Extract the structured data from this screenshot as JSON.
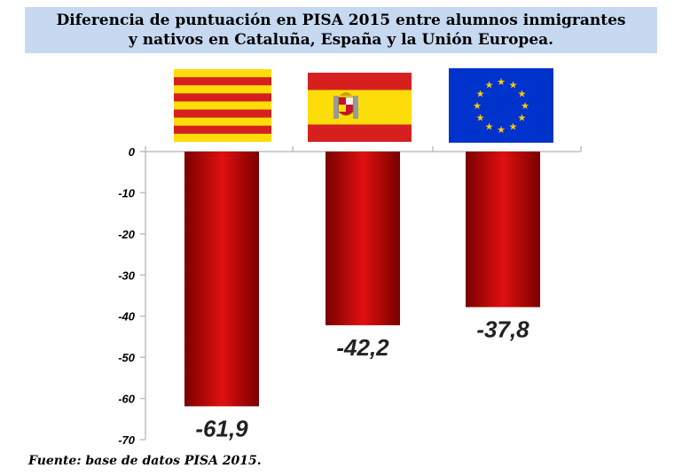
{
  "title": {
    "line1": "Diferencia de puntuación en PISA 2015 entre alumnos inmigrantes",
    "line2": "y nativos en Cataluña, España y la Unión Europea."
  },
  "source": "Fuente: base de datos PISA 2015.",
  "colors": {
    "title_bg": "#c6d9f1",
    "bar_dark": "#7a0000",
    "bar_light": "#e01010",
    "flag_red": "#d6201f",
    "flag_yellow": "#fcdd09",
    "eu_blue": "#0033cc",
    "eu_star": "#ffcc00"
  },
  "chart_data": {
    "type": "bar",
    "categories": [
      "Cataluña",
      "España",
      "Unión Europea"
    ],
    "flags": [
      "catalonia-flag-icon",
      "spain-flag-icon",
      "eu-flag-icon"
    ],
    "values": [
      -61.9,
      -42.2,
      -37.8
    ],
    "value_labels": [
      "-61,9",
      "-42,2",
      "-37,8"
    ],
    "ylim": [
      -70,
      0
    ],
    "yticks": [
      0,
      -10,
      -20,
      -30,
      -40,
      -50,
      -60,
      -70
    ],
    "ytick_labels": [
      "0",
      "-10",
      "-20",
      "-30",
      "-40",
      "-50",
      "-60",
      "-70"
    ],
    "grid": false,
    "legend": "none"
  }
}
